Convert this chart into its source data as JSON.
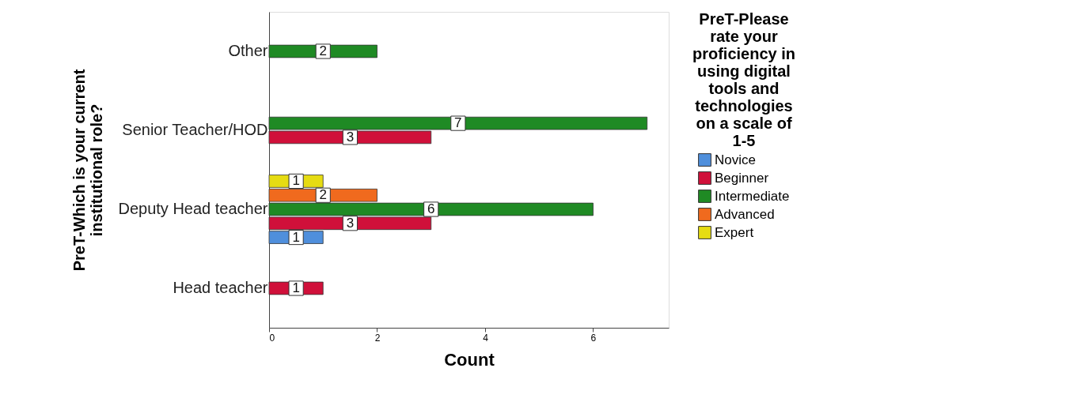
{
  "chart_data": {
    "type": "bar",
    "orientation": "horizontal",
    "xlabel": "Count",
    "ylabel": "PreT-Which is your current institutional role?",
    "legend_title": "PreT-Please rate your proficiency in using digital tools and technologies on a scale of 1-5",
    "categories": [
      "Other",
      "Senior Teacher/HOD",
      "Deputy Head teacher",
      "Head teacher"
    ],
    "series": [
      {
        "name": "Novice",
        "color": "#4f8fdc",
        "values": [
          null,
          null,
          1,
          null
        ]
      },
      {
        "name": "Beginner",
        "color": "#d0103a",
        "values": [
          null,
          3,
          3,
          1
        ]
      },
      {
        "name": "Intermediate",
        "color": "#1f8a24",
        "values": [
          2,
          7,
          6,
          null
        ]
      },
      {
        "name": "Advanced",
        "color": "#f06a1e",
        "values": [
          null,
          null,
          2,
          null
        ]
      },
      {
        "name": "Expert",
        "color": "#e6dc12",
        "values": [
          null,
          null,
          1,
          null
        ]
      }
    ],
    "xlim": [
      0,
      7.4
    ],
    "xticks": [
      0,
      2,
      4,
      6
    ],
    "grid": false,
    "legend": "right",
    "data_labels": true
  }
}
